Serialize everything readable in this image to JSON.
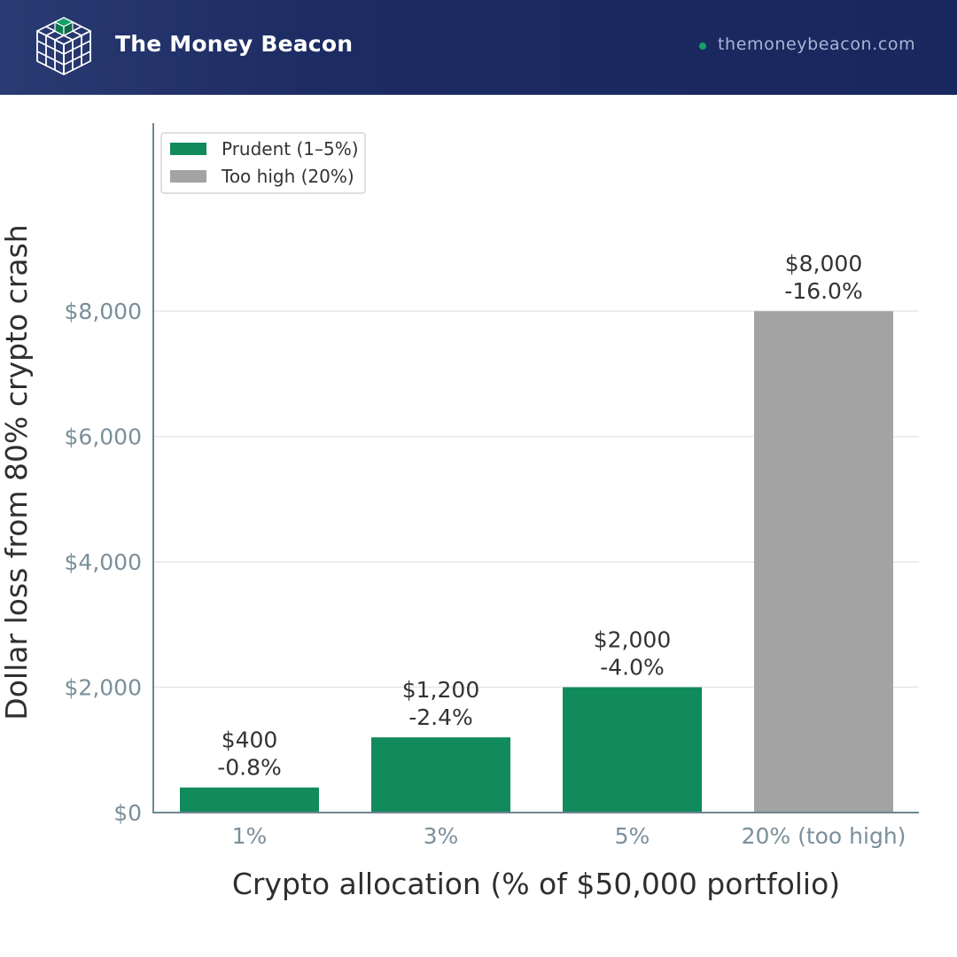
{
  "header": {
    "brand": "The Money Beacon",
    "site": "themoneybeacon.com",
    "logo_icon": "cube-grid-icon",
    "dot_color": "#14a06a"
  },
  "chart_data": {
    "type": "bar",
    "categories": [
      "1%",
      "3%",
      "5%",
      "20% (too high)"
    ],
    "values": [
      400,
      1200,
      2000,
      8000
    ],
    "value_labels": [
      "$400",
      "$1,200",
      "$2,000",
      "$8,000"
    ],
    "pct_labels": [
      "-0.8%",
      "-2.4%",
      "-4.0%",
      "-16.0%"
    ],
    "bar_groups": [
      "prudent",
      "prudent",
      "prudent",
      "too_high"
    ],
    "xlabel": "Crypto allocation (% of $50,000 portfolio)",
    "ylabel": "Dollar loss from 80% crypto crash",
    "ylim": [
      0,
      11000
    ],
    "yticks": [
      0,
      2000,
      4000,
      6000,
      8000
    ],
    "ytick_labels": [
      "$0",
      "$2,000",
      "$4,000",
      "$6,000",
      "$8,000"
    ],
    "grid": true,
    "legend_position": "top-left",
    "legend": [
      {
        "key": "prudent",
        "label": "Prudent (1–5%)",
        "color": "#118a5c"
      },
      {
        "key": "too_high",
        "label": "Too high (20%)",
        "color": "#a3a3a3"
      }
    ]
  }
}
